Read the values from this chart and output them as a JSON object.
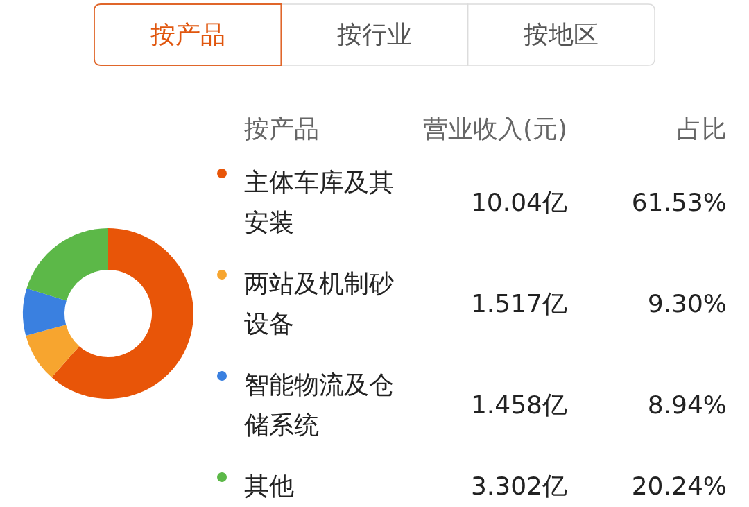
{
  "chart_data": {
    "type": "donut",
    "categories": [
      "主体车库及其安装",
      "两站及机制砂设备",
      "智能物流及仓储系统",
      "其他"
    ],
    "values": [
      10.04,
      1.517,
      1.458,
      3.302
    ],
    "value_labels": [
      "10.04亿",
      "1.517亿",
      "1.458亿",
      "3.302亿"
    ],
    "colors": [
      "#e85508",
      "#f7a52f",
      "#3a80e0",
      "#5cb848"
    ],
    "legend": "right",
    "legend_title": "按产品",
    "annotations": [
      "按产品",
      "按行业",
      "按地区",
      "营业收入(元)",
      "占比",
      "61.53%",
      "9.30%",
      "8.94%",
      "20.24%"
    ]
  }
}
